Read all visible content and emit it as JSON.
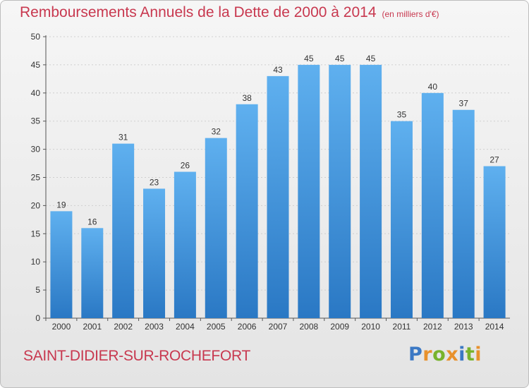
{
  "chart_data": {
    "type": "bar",
    "title": "Remboursements Annuels de la Dette de 2000 à 2014",
    "unit": "(en milliers d'€)",
    "categories": [
      "2000",
      "2001",
      "2002",
      "2003",
      "2004",
      "2005",
      "2006",
      "2007",
      "2008",
      "2009",
      "2010",
      "2011",
      "2012",
      "2013",
      "2014"
    ],
    "values": [
      19,
      16,
      31,
      23,
      26,
      32,
      38,
      43,
      45,
      45,
      45,
      35,
      40,
      37,
      27
    ],
    "ylim": [
      0,
      50
    ],
    "yticks": [
      0,
      5,
      10,
      15,
      20,
      25,
      30,
      35,
      40,
      45,
      50
    ],
    "grid": true,
    "bar_color": "#3a8ad6"
  },
  "footer": {
    "commune": "SAINT-DIDIER-SUR-ROCHEFORT",
    "brand": "Proxiti"
  },
  "colors": {
    "title": "#c8384f",
    "brand_letters": [
      "#3b78c4",
      "#e8912c",
      "#78b32c",
      "#e8912c",
      "#3b78c4",
      "#78b32c",
      "#e8912c"
    ]
  }
}
